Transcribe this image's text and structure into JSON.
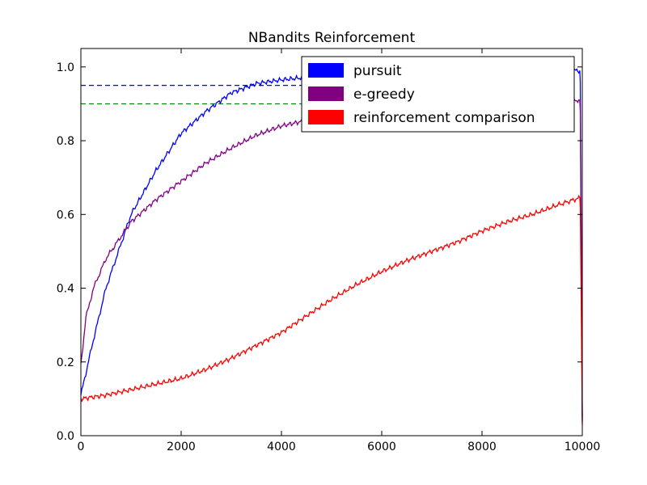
{
  "chart_data": {
    "type": "line",
    "title": "NBandits Reinforcement",
    "xlabel": "",
    "ylabel": "",
    "xlim": [
      0,
      10000
    ],
    "ylim": [
      0.0,
      1.05
    ],
    "grid": false,
    "legend_position": "top-right",
    "x_ticks": [
      0,
      2000,
      4000,
      6000,
      8000,
      10000
    ],
    "x_tick_labels": [
      "0",
      "2000",
      "4000",
      "6000",
      "8000",
      "10000"
    ],
    "y_ticks": [
      0.0,
      0.2,
      0.4,
      0.6,
      0.8,
      1.0
    ],
    "y_tick_labels": [
      "0.0",
      "0.2",
      "0.4",
      "0.6",
      "0.8",
      "1.0"
    ],
    "reference_lines": [
      {
        "y": 0.95,
        "color": "#0000ff",
        "style": "dashed",
        "x_range": [
          0,
          9800
        ]
      },
      {
        "y": 0.9,
        "color": "#008000",
        "style": "dashed",
        "x_range": [
          0,
          9800
        ]
      }
    ],
    "series": [
      {
        "name": "pursuit",
        "color": "#0000ff",
        "x": [
          0,
          250,
          500,
          750,
          1000,
          1500,
          2000,
          2500,
          3000,
          3500,
          4000,
          4500,
          5000,
          6000,
          7000,
          8000,
          9000,
          9950,
          9960,
          10000
        ],
        "y": [
          0.11,
          0.26,
          0.4,
          0.5,
          0.6,
          0.72,
          0.82,
          0.88,
          0.93,
          0.955,
          0.965,
          0.972,
          0.978,
          0.983,
          0.986,
          0.988,
          0.989,
          0.99,
          0.96,
          0.04
        ]
      },
      {
        "name": "e-greedy",
        "color": "#800080",
        "x": [
          0,
          100,
          250,
          500,
          750,
          1000,
          1500,
          2000,
          2500,
          3000,
          3500,
          4000,
          4500,
          5000,
          6000,
          7000,
          8000,
          9000,
          9950,
          9960,
          10000
        ],
        "y": [
          0.19,
          0.32,
          0.4,
          0.48,
          0.53,
          0.58,
          0.64,
          0.69,
          0.74,
          0.78,
          0.815,
          0.84,
          0.855,
          0.865,
          0.875,
          0.885,
          0.895,
          0.9,
          0.91,
          0.88,
          0.05
        ]
      },
      {
        "name": "reinforcement comparison",
        "color": "#ff0000",
        "x": [
          0,
          500,
          1000,
          1500,
          2000,
          2500,
          3000,
          3500,
          4000,
          4500,
          5000,
          5500,
          6000,
          6500,
          7000,
          7500,
          8000,
          8500,
          9000,
          9500,
          9950,
          9960,
          10000
        ],
        "y": [
          0.1,
          0.11,
          0.125,
          0.14,
          0.155,
          0.18,
          0.21,
          0.245,
          0.28,
          0.325,
          0.37,
          0.41,
          0.445,
          0.475,
          0.5,
          0.525,
          0.555,
          0.58,
          0.6,
          0.625,
          0.645,
          0.62,
          0.03
        ]
      }
    ]
  }
}
